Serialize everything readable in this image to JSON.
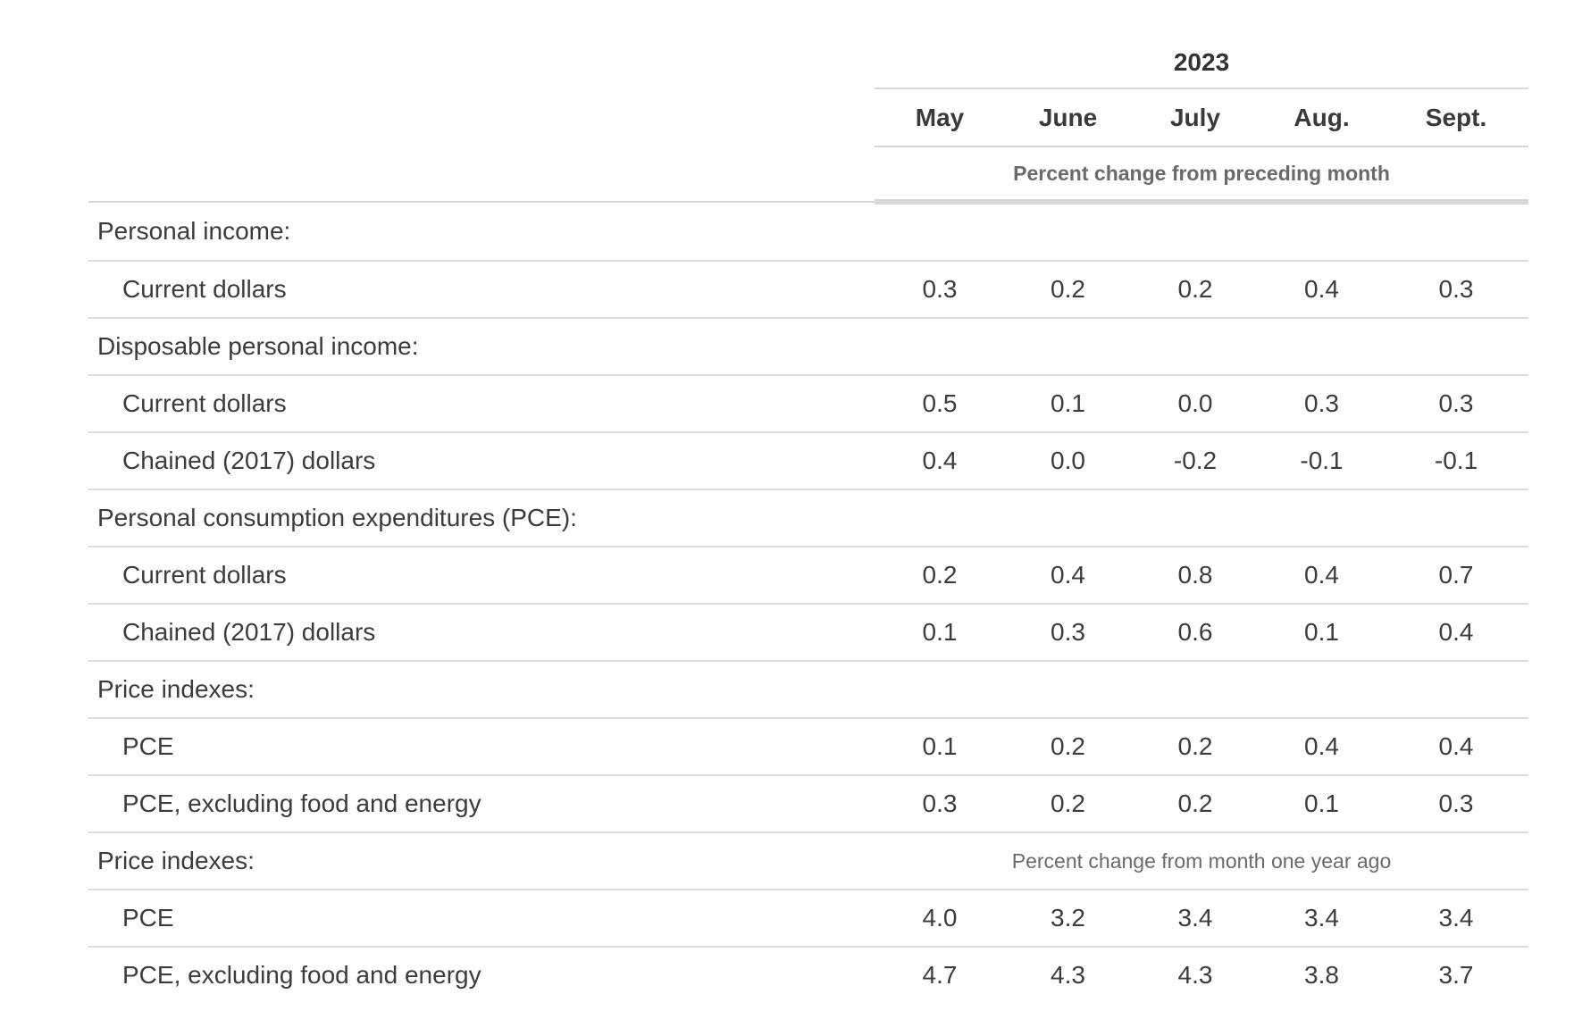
{
  "header": {
    "year": "2023",
    "months": [
      "May",
      "June",
      "July",
      "Aug.",
      "Sept."
    ],
    "unit_note": "Percent change from preceding month"
  },
  "rows": [
    {
      "label": "Personal income:",
      "type": "section"
    },
    {
      "label": "Current dollars",
      "type": "data",
      "values": [
        "0.3",
        "0.2",
        "0.2",
        "0.4",
        "0.3"
      ]
    },
    {
      "label": "Disposable personal income:",
      "type": "section"
    },
    {
      "label": "Current dollars",
      "type": "data",
      "values": [
        "0.5",
        "0.1",
        "0.0",
        "0.3",
        "0.3"
      ]
    },
    {
      "label": "Chained (2017) dollars",
      "type": "data",
      "values": [
        "0.4",
        "0.0",
        "-0.2",
        "-0.1",
        "-0.1"
      ]
    },
    {
      "label": "Personal consumption expenditures (PCE):",
      "type": "section"
    },
    {
      "label": "Current dollars",
      "type": "data",
      "values": [
        "0.2",
        "0.4",
        "0.8",
        "0.4",
        "0.7"
      ]
    },
    {
      "label": "Chained (2017) dollars",
      "type": "data",
      "values": [
        "0.1",
        "0.3",
        "0.6",
        "0.1",
        "0.4"
      ]
    },
    {
      "label": "Price indexes:",
      "type": "section"
    },
    {
      "label": "PCE",
      "type": "data",
      "values": [
        "0.1",
        "0.2",
        "0.2",
        "0.4",
        "0.4"
      ]
    },
    {
      "label": "PCE, excluding food and energy",
      "type": "data",
      "values": [
        "0.3",
        "0.2",
        "0.2",
        "0.1",
        "0.3"
      ]
    },
    {
      "label": "Price indexes:",
      "type": "section",
      "note": "Percent change from month one year ago"
    },
    {
      "label": "PCE",
      "type": "data",
      "values": [
        "4.0",
        "3.2",
        "3.4",
        "3.4",
        "3.4"
      ]
    },
    {
      "label": "PCE, excluding food and energy",
      "type": "data",
      "values": [
        "4.7",
        "4.3",
        "4.3",
        "3.8",
        "3.7"
      ]
    }
  ]
}
